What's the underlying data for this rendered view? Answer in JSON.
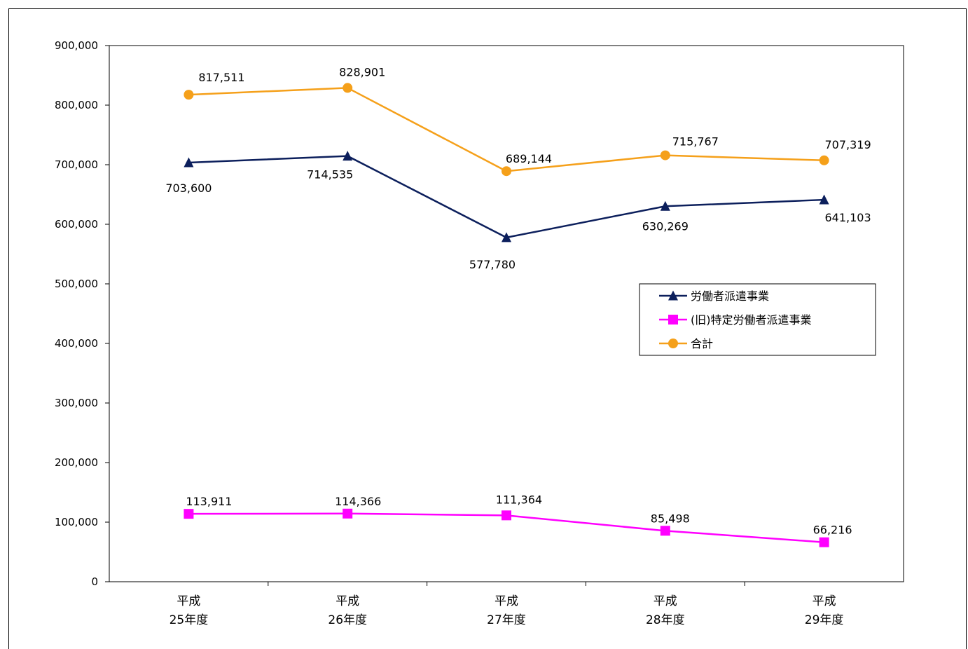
{
  "chart_data": {
    "type": "line",
    "title": "",
    "xlabel": "",
    "ylabel": "",
    "categories": [
      [
        "平成",
        "25年度"
      ],
      [
        "平成",
        "26年度"
      ],
      [
        "平成",
        "27年度"
      ],
      [
        "平成",
        "28年度"
      ],
      [
        "平成",
        "29年度"
      ]
    ],
    "ylim": [
      0,
      900000
    ],
    "yticks": [
      0,
      100000,
      200000,
      300000,
      400000,
      500000,
      600000,
      700000,
      800000,
      900000
    ],
    "ytick_labels": [
      "0",
      "100,000",
      "200,000",
      "300,000",
      "400,000",
      "500,000",
      "600,000",
      "700,000",
      "800,000",
      "900,000"
    ],
    "grid": false,
    "legend_position": "right",
    "series": [
      {
        "name": "労働者派遣事業",
        "marker": "triangle",
        "color": "#0c1f5c",
        "values": [
          703600,
          714535,
          577780,
          630269,
          641103
        ],
        "labels": [
          "703,600",
          "714,535",
          "577,780",
          "630,269",
          "641,103"
        ]
      },
      {
        "name": "(旧)特定労働者派遣事業",
        "marker": "square",
        "color": "#ff00ff",
        "values": [
          113911,
          114366,
          111364,
          85498,
          66216
        ],
        "labels": [
          "113,911",
          "114,366",
          "111,364",
          "85,498",
          "66,216"
        ]
      },
      {
        "name": "合計",
        "marker": "circle",
        "color": "#f5a01a",
        "values": [
          817511,
          828901,
          689144,
          715767,
          707319
        ],
        "labels": [
          "817,511",
          "828,901",
          "689,144",
          "715,767",
          "707,319"
        ]
      }
    ]
  }
}
